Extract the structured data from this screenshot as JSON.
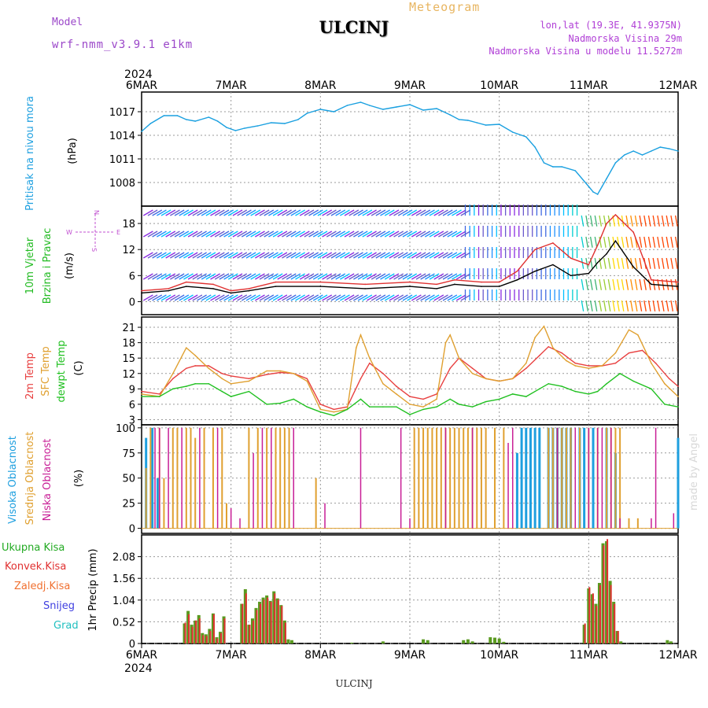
{
  "header": {
    "station": "ULCINJ",
    "model_label": "Model",
    "model_name": "wrf-nmm_v3.9.1 e1km",
    "meteogram_title": "Meteogram",
    "lonlat": "lon,lat (19.3E, 41.9375N)",
    "elevation": "Nadmorska Visina 29m",
    "model_elevation": "Nadmorska Visina u modelu 11.5272m"
  },
  "footer": {
    "station": "ULCINJ"
  },
  "credit": "made by Angel",
  "time_axis": {
    "year": "2024",
    "labels": [
      "6MAR",
      "7MAR",
      "8MAR",
      "9MAR",
      "10MAR",
      "11MAR",
      "12MAR"
    ]
  },
  "compass": {
    "n": "N",
    "w": "W",
    "e": "E",
    "s": "S"
  },
  "colors": {
    "pressure": "#1aa0e0",
    "wind_speed": "#000000",
    "wind_gust": "#e03030",
    "t2m": "#e84040",
    "sfc": "#e0a030",
    "dewpt": "#20c020",
    "high_cloud": "#1e9fdf",
    "mid_cloud": "#e0a030",
    "low_cloud": "#c81e96",
    "total_precip": "#5a9a20",
    "conv_precip": "#e03030"
  },
  "chart_data": [
    {
      "type": "line",
      "title": "",
      "ylabel_lines": [
        "Pritisak na nivou mora",
        "(hPa)"
      ],
      "ylim": [
        1005,
        1019.5
      ],
      "yticks": [
        1008,
        1011,
        1014,
        1017
      ],
      "x_unit": "days since 6MAR 00UTC",
      "series": [
        {
          "name": "Pritisak na nivou mora",
          "x": [
            0,
            0.1,
            0.25,
            0.4,
            0.5,
            0.6,
            0.75,
            0.85,
            0.95,
            1.05,
            1.15,
            1.3,
            1.45,
            1.6,
            1.75,
            1.85,
            2.0,
            2.15,
            2.3,
            2.45,
            2.55,
            2.7,
            2.85,
            3.0,
            3.15,
            3.3,
            3.45,
            3.55,
            3.65,
            3.75,
            3.85,
            4.0,
            4.15,
            4.3,
            4.4,
            4.5,
            4.6,
            4.7,
            4.85,
            5.0,
            5.05,
            5.1,
            5.15,
            5.2,
            5.3,
            5.4,
            5.5,
            5.6,
            5.7,
            5.8,
            5.9,
            6.0
          ],
          "values": [
            1014.5,
            1015.5,
            1016.5,
            1016.5,
            1016.0,
            1015.8,
            1016.3,
            1015.8,
            1015.0,
            1014.6,
            1014.9,
            1015.2,
            1015.6,
            1015.5,
            1016.0,
            1016.8,
            1017.3,
            1017.0,
            1017.8,
            1018.2,
            1017.8,
            1017.3,
            1017.6,
            1017.9,
            1017.2,
            1017.4,
            1016.6,
            1016.0,
            1015.9,
            1015.6,
            1015.3,
            1015.4,
            1014.4,
            1013.8,
            1012.5,
            1010.5,
            1010.0,
            1010.0,
            1009.5,
            1007.5,
            1006.8,
            1006.5,
            1007.5,
            1008.5,
            1010.5,
            1011.5,
            1012.0,
            1011.5,
            1012.0,
            1012.5,
            1012.3,
            1012.0
          ]
        }
      ]
    },
    {
      "type": "line",
      "title": "",
      "ylabel_lines": [
        "10m Vjetar",
        "Brzina i Pravac",
        "(m/s)"
      ],
      "ylim": [
        -3,
        22
      ],
      "yticks": [
        0,
        6,
        12,
        18
      ],
      "x_unit": "days since 6MAR 00UTC",
      "series": [
        {
          "name": "wind speed",
          "x": [
            0,
            0.3,
            0.5,
            0.8,
            1.0,
            1.2,
            1.5,
            2.0,
            2.5,
            3.0,
            3.3,
            3.5,
            3.8,
            4.0,
            4.2,
            4.4,
            4.6,
            4.8,
            5.0,
            5.1,
            5.2,
            5.3,
            5.5,
            5.7,
            6.0
          ],
          "values": [
            2,
            2.5,
            3.5,
            3.0,
            2.0,
            2.5,
            3.5,
            3.5,
            3.0,
            3.5,
            3.0,
            4.0,
            3.5,
            3.5,
            5.0,
            7.0,
            8.5,
            6.0,
            6.5,
            9.0,
            11.0,
            14.0,
            8.0,
            4.0,
            3.5
          ]
        },
        {
          "name": "wind gust",
          "x": [
            0,
            0.3,
            0.5,
            0.8,
            1.0,
            1.2,
            1.5,
            2.0,
            2.5,
            3.0,
            3.3,
            3.5,
            3.8,
            4.0,
            4.2,
            4.4,
            4.6,
            4.8,
            5.0,
            5.1,
            5.2,
            5.3,
            5.5,
            5.7,
            6.0
          ],
          "values": [
            2.5,
            3.0,
            4.5,
            4.0,
            2.5,
            3.0,
            4.5,
            4.5,
            4.0,
            4.5,
            4.0,
            5.0,
            4.5,
            4.5,
            7.0,
            12.0,
            13.5,
            10.0,
            8.5,
            13.0,
            18.0,
            20.0,
            16.0,
            5.0,
            4.5
          ]
        }
      ]
    },
    {
      "type": "line",
      "title": "",
      "ylabel_lines": [
        "2m Temp",
        "SFC Temp",
        "dewpt Temp",
        "(C)"
      ],
      "ylim": [
        2,
        23
      ],
      "yticks": [
        3,
        6,
        9,
        12,
        15,
        18,
        21
      ],
      "x_unit": "days since 6MAR 00UTC",
      "series": [
        {
          "name": "2m Temp",
          "x": [
            0,
            0.2,
            0.35,
            0.5,
            0.6,
            0.75,
            0.9,
            1.0,
            1.2,
            1.4,
            1.55,
            1.7,
            1.85,
            2.0,
            2.15,
            2.3,
            2.45,
            2.55,
            2.7,
            2.85,
            3.0,
            3.15,
            3.3,
            3.45,
            3.55,
            3.7,
            3.85,
            4.0,
            4.15,
            4.3,
            4.45,
            4.55,
            4.7,
            4.85,
            5.0,
            5.15,
            5.3,
            5.45,
            5.6,
            5.75,
            5.9,
            6.0
          ],
          "values": [
            8.5,
            8,
            11,
            13,
            13.5,
            13.5,
            12,
            11.5,
            11,
            11.8,
            12.2,
            12,
            11,
            6,
            5,
            5.5,
            11,
            14,
            12,
            9.5,
            7.5,
            7,
            8,
            13,
            15,
            13,
            11,
            10.5,
            11,
            13,
            15.5,
            17.2,
            16,
            14,
            13.5,
            13.5,
            14,
            16,
            16.5,
            14,
            11,
            9.5
          ]
        },
        {
          "name": "SFC Temp",
          "x": [
            0,
            0.2,
            0.35,
            0.5,
            0.6,
            0.75,
            0.9,
            1.0,
            1.2,
            1.4,
            1.55,
            1.7,
            1.85,
            2.0,
            2.15,
            2.3,
            2.4,
            2.45,
            2.55,
            2.7,
            2.85,
            3.0,
            3.15,
            3.3,
            3.4,
            3.45,
            3.55,
            3.7,
            3.85,
            4.0,
            4.15,
            4.3,
            4.4,
            4.5,
            4.6,
            4.75,
            4.85,
            5.0,
            5.15,
            5.3,
            5.45,
            5.55,
            5.7,
            5.85,
            6.0
          ],
          "values": [
            8,
            7.5,
            12,
            17,
            15.5,
            13,
            11,
            10,
            10.5,
            12.5,
            12.5,
            12,
            10.5,
            5,
            4.5,
            5,
            17,
            19.5,
            15,
            10,
            8,
            6,
            5.5,
            7,
            18,
            19.5,
            15,
            12,
            11,
            10.5,
            11,
            14,
            19,
            21.2,
            17,
            14.5,
            13.5,
            13,
            13.5,
            16,
            20.5,
            19.5,
            14,
            10,
            7.5
          ]
        },
        {
          "name": "dewpt Temp",
          "x": [
            0,
            0.2,
            0.35,
            0.5,
            0.6,
            0.75,
            0.9,
            1.0,
            1.2,
            1.4,
            1.55,
            1.7,
            1.85,
            2.0,
            2.15,
            2.3,
            2.45,
            2.55,
            2.7,
            2.85,
            3.0,
            3.15,
            3.3,
            3.45,
            3.55,
            3.7,
            3.85,
            4.0,
            4.15,
            4.3,
            4.45,
            4.55,
            4.7,
            4.85,
            5.0,
            5.1,
            5.2,
            5.35,
            5.5,
            5.7,
            5.85,
            6.0
          ],
          "values": [
            7.5,
            7.5,
            9,
            9.5,
            10,
            10,
            8.5,
            7.5,
            8.5,
            6,
            6.2,
            7,
            5.5,
            4.5,
            3.8,
            5,
            7,
            5.5,
            5.5,
            5.5,
            4,
            5,
            5.5,
            7,
            6,
            5.5,
            6.5,
            7,
            8,
            7.5,
            9,
            10,
            9.5,
            8.5,
            8,
            8.5,
            10,
            12,
            10.5,
            9,
            6,
            5.5
          ]
        }
      ]
    },
    {
      "type": "bar",
      "title": "",
      "ylabel_lines": [
        "Visoka Oblacnost",
        "Srednja Oblacnost",
        "Niska Oblacnost",
        "(%)"
      ],
      "ylim": [
        -5,
        103
      ],
      "yticks": [
        0,
        25,
        50,
        75,
        100
      ],
      "x_unit": "days since 6MAR 00UTC",
      "series": [
        {
          "name": "Visoka Oblacnost",
          "x": [
            0.05,
            0.12,
            0.18,
            4.2,
            4.25,
            4.3,
            4.35,
            4.4,
            4.45,
            4.55,
            4.6,
            4.65,
            4.7,
            4.75,
            4.8,
            4.9,
            4.95,
            5.05,
            5.2,
            5.3,
            6.0
          ],
          "values": [
            90,
            100,
            50,
            75,
            100,
            100,
            100,
            100,
            100,
            100,
            100,
            100,
            100,
            100,
            100,
            100,
            100,
            100,
            100,
            75,
            90
          ]
        },
        {
          "name": "Srednja Oblacnost",
          "x": [
            0.05,
            0.1,
            0.2,
            0.25,
            0.35,
            0.4,
            0.5,
            0.55,
            0.6,
            0.7,
            0.8,
            0.9,
            0.95,
            1.2,
            1.3,
            1.4,
            1.5,
            1.55,
            1.6,
            1.65,
            1.95,
            3.05,
            3.1,
            3.15,
            3.2,
            3.25,
            3.3,
            3.35,
            3.4,
            3.45,
            3.5,
            3.55,
            3.6,
            3.65,
            3.7,
            3.75,
            3.8,
            3.85,
            3.95,
            4.05,
            4.55,
            4.6,
            4.65,
            4.7,
            4.75,
            4.8,
            4.9,
            5.0,
            5.1,
            5.2,
            5.25,
            5.3,
            5.35,
            5.45,
            5.55
          ],
          "values": [
            60,
            100,
            100,
            50,
            100,
            100,
            100,
            100,
            90,
            100,
            100,
            100,
            25,
            100,
            100,
            100,
            100,
            100,
            100,
            100,
            50,
            100,
            100,
            100,
            100,
            100,
            100,
            100,
            100,
            100,
            100,
            100,
            100,
            100,
            100,
            100,
            100,
            100,
            100,
            100,
            100,
            100,
            100,
            100,
            100,
            100,
            100,
            100,
            100,
            100,
            100,
            100,
            100,
            10,
            10
          ]
        },
        {
          "name": "Niska Oblacnost",
          "x": [
            0.15,
            0.2,
            0.3,
            0.45,
            0.65,
            0.85,
            1.0,
            1.1,
            1.25,
            1.35,
            1.45,
            1.7,
            2.05,
            2.45,
            2.9,
            3.0,
            3.4,
            3.7,
            4.1,
            4.15,
            4.65,
            4.85,
            5.0,
            5.1,
            5.15,
            5.25,
            5.35,
            5.7,
            5.75,
            5.95
          ],
          "values": [
            100,
            100,
            100,
            100,
            100,
            100,
            20,
            10,
            75,
            100,
            100,
            100,
            25,
            100,
            100,
            10,
            100,
            100,
            85,
            100,
            100,
            100,
            100,
            100,
            100,
            100,
            10,
            10,
            100,
            15
          ]
        }
      ]
    },
    {
      "type": "bar",
      "title": "",
      "ylabel_lines": [
        "1hr Precip (mm)"
      ],
      "legend_lines": [
        "Ukupna Kisa",
        "Konvek.Kisa",
        "Zaledj.Kisa",
        "Snijeg",
        "Grad"
      ],
      "ylim": [
        0,
        2.6
      ],
      "yticks": [
        0,
        0.52,
        1.04,
        1.56,
        2.08
      ],
      "x_unit": "days since 6MAR 00UTC",
      "series": [
        {
          "name": "Ukupna Kisa",
          "x": [
            0.48,
            0.52,
            0.56,
            0.6,
            0.64,
            0.68,
            0.72,
            0.76,
            0.8,
            0.84,
            0.88,
            0.92,
            1.12,
            1.16,
            1.2,
            1.24,
            1.28,
            1.32,
            1.36,
            1.4,
            1.44,
            1.48,
            1.52,
            1.56,
            1.6,
            1.64,
            1.68,
            2.35,
            2.7,
            3.15,
            3.2,
            3.6,
            3.65,
            3.7,
            3.9,
            3.95,
            4.0,
            4.05,
            4.95,
            5.0,
            5.04,
            5.08,
            5.12,
            5.16,
            5.2,
            5.24,
            5.28,
            5.32,
            5.36,
            5.88,
            5.92
          ],
          "values": [
            0.48,
            0.78,
            0.45,
            0.55,
            0.68,
            0.25,
            0.22,
            0.35,
            0.72,
            0.15,
            0.28,
            0.65,
            0.95,
            1.3,
            0.45,
            0.6,
            0.85,
            1.0,
            1.1,
            1.15,
            1.02,
            1.25,
            1.08,
            0.92,
            0.55,
            0.1,
            0.08,
            0.02,
            0.05,
            0.1,
            0.08,
            0.08,
            0.1,
            0.05,
            0.15,
            0.14,
            0.12,
            0.04,
            0.45,
            1.32,
            1.18,
            0.95,
            1.45,
            2.4,
            2.45,
            1.5,
            1.0,
            0.3,
            0.05,
            0.08,
            0.05
          ]
        },
        {
          "name": "Konvek.Kisa",
          "x": [
            0.48,
            0.52,
            0.56,
            0.6,
            0.64,
            0.68,
            0.72,
            0.76,
            0.8,
            0.84,
            0.88,
            0.92,
            1.12,
            1.16,
            1.2,
            1.24,
            1.28,
            1.32,
            1.36,
            1.4,
            1.44,
            1.48,
            1.52,
            1.56,
            1.6,
            4.95,
            5.0,
            5.04,
            5.08,
            5.12,
            5.16,
            5.2,
            5.24,
            5.28,
            5.32
          ],
          "values": [
            0.5,
            0.7,
            0.4,
            0.55,
            0.6,
            0.2,
            0.18,
            0.3,
            0.7,
            0.12,
            0.25,
            0.6,
            0.95,
            1.2,
            0.45,
            0.55,
            0.8,
            0.95,
            1.05,
            1.1,
            1.0,
            1.2,
            1.05,
            0.9,
            0.5,
            0.48,
            1.35,
            1.2,
            0.9,
            1.4,
            2.35,
            2.5,
            1.4,
            0.95,
            0.3
          ]
        }
      ]
    }
  ]
}
